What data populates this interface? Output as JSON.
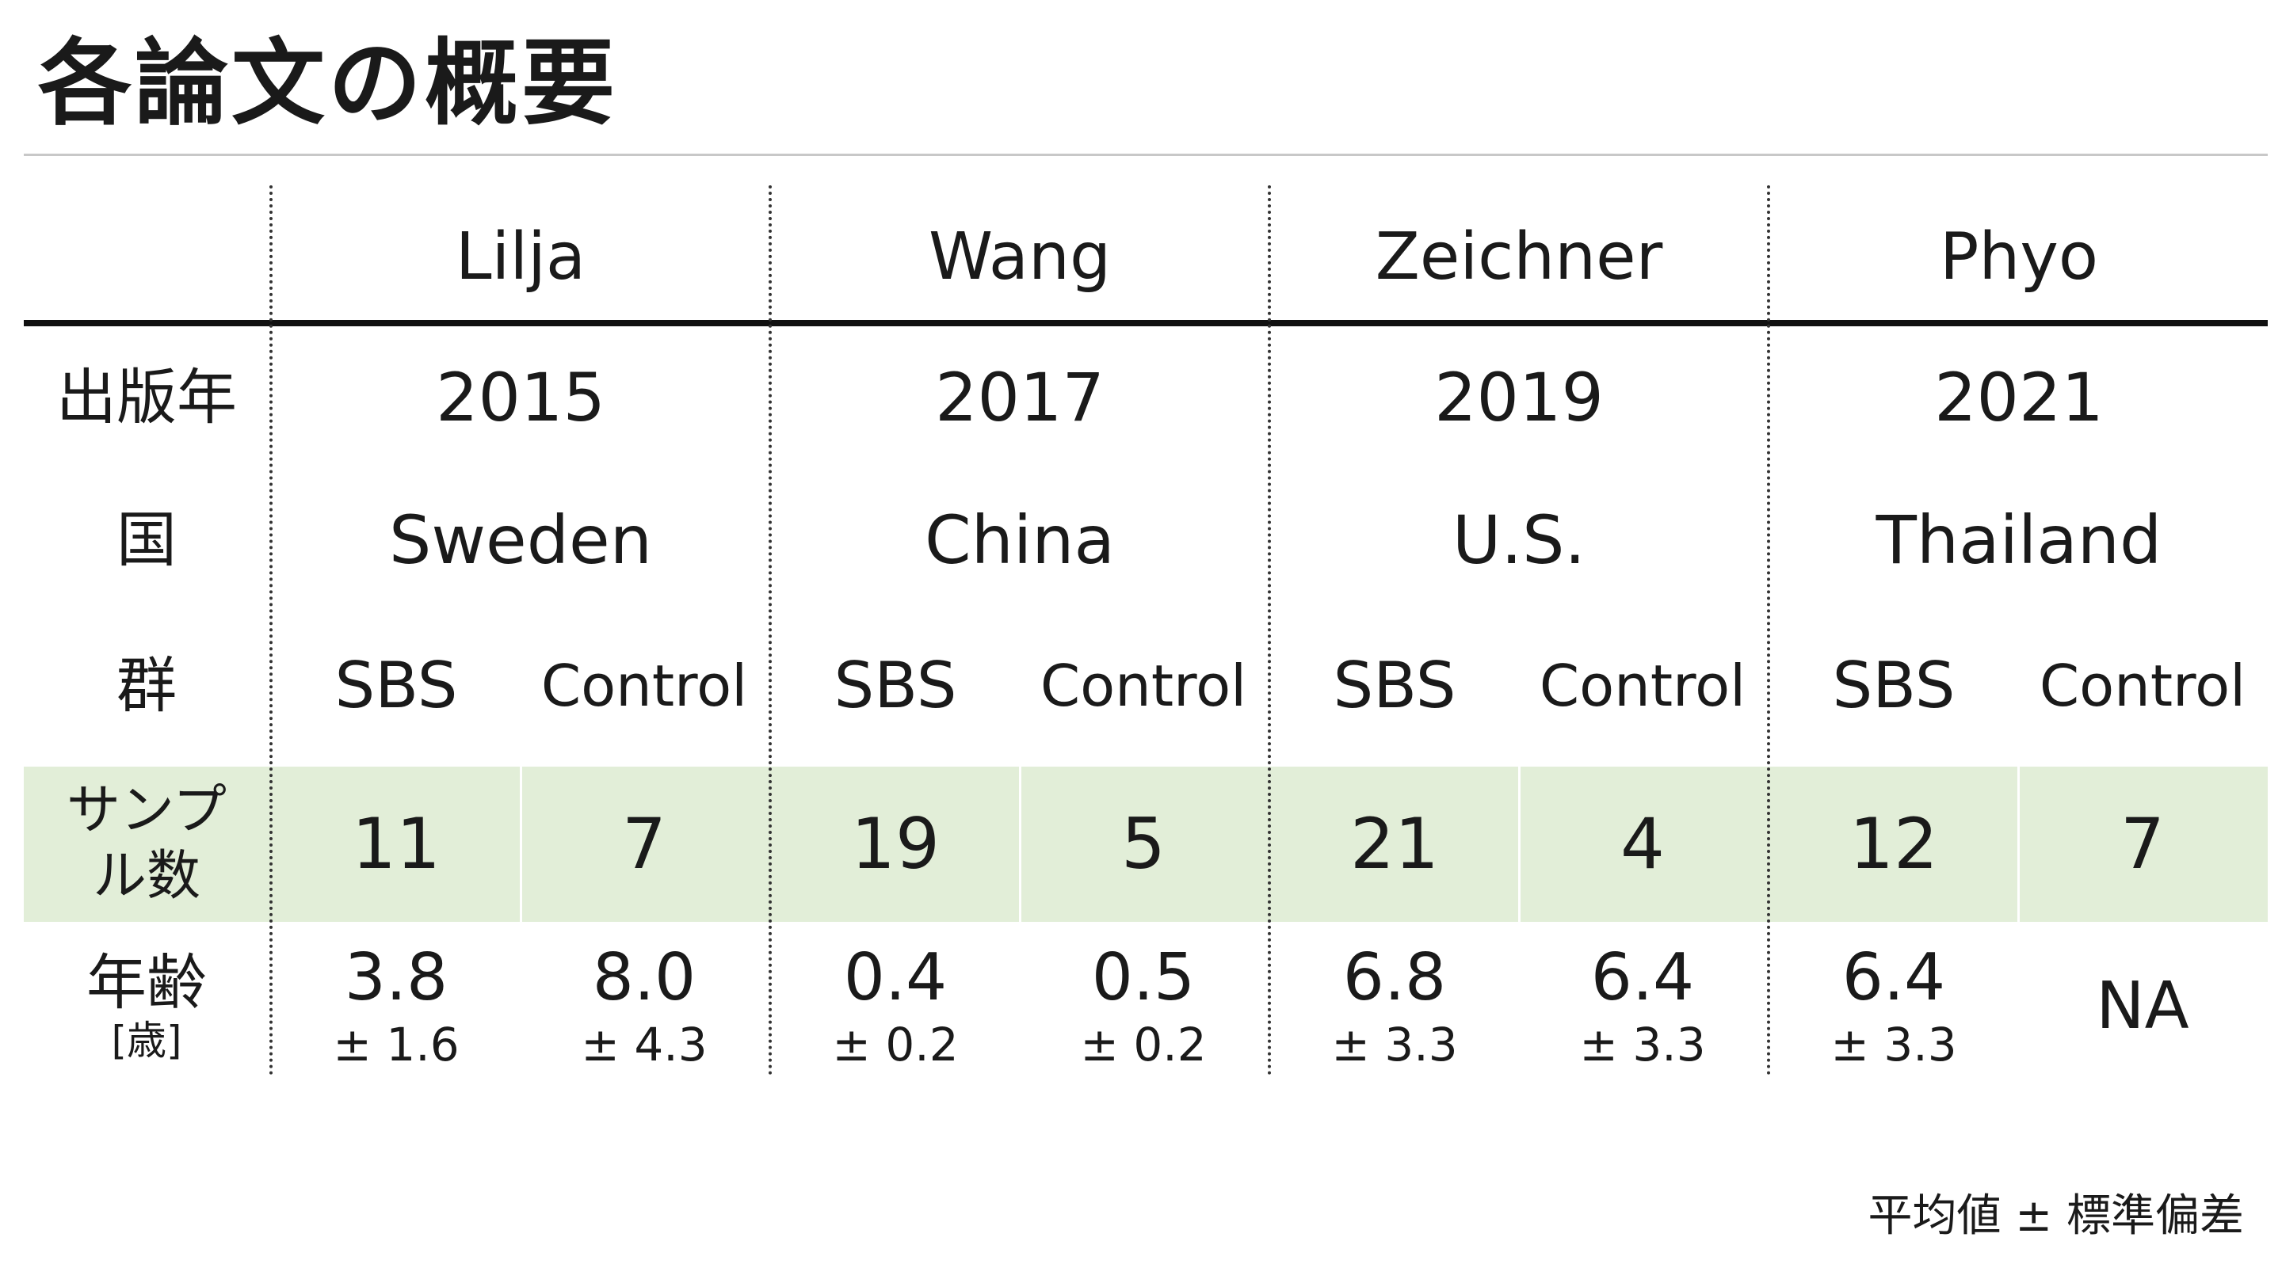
{
  "title": "各論文の概要",
  "colors": {
    "sample_band": "#e2eed8",
    "header_rule": "#111111",
    "title_rule": "#c8c8c8",
    "text": "#1a1a1a"
  },
  "row_labels": {
    "year": "出版年",
    "country": "国",
    "group": "群",
    "sample_line1": "サンプ",
    "sample_line2": "ル数",
    "age": "年齢",
    "age_unit": "[歳]"
  },
  "studies": [
    {
      "author": "Lilja",
      "year": "2015",
      "country": "Sweden",
      "groups": [
        {
          "name": "SBS",
          "n": "11",
          "age_mean": "3.8",
          "age_sd": "± 1.6"
        },
        {
          "name": "Control",
          "n": "7",
          "age_mean": "8.0",
          "age_sd": "± 4.3"
        }
      ]
    },
    {
      "author": "Wang",
      "year": "2017",
      "country": "China",
      "groups": [
        {
          "name": "SBS",
          "n": "19",
          "age_mean": "0.4",
          "age_sd": "± 0.2"
        },
        {
          "name": "Control",
          "n": "5",
          "age_mean": "0.5",
          "age_sd": "± 0.2"
        }
      ]
    },
    {
      "author": "Zeichner",
      "year": "2019",
      "country": "U.S.",
      "groups": [
        {
          "name": "SBS",
          "n": "21",
          "age_mean": "6.8",
          "age_sd": "± 3.3"
        },
        {
          "name": "Control",
          "n": "4",
          "age_mean": "6.4",
          "age_sd": "± 3.3"
        }
      ]
    },
    {
      "author": "Phyo",
      "year": "2021",
      "country": "Thailand",
      "groups": [
        {
          "name": "SBS",
          "n": "12",
          "age_mean": "6.4",
          "age_sd": "± 3.3"
        },
        {
          "name": "Control",
          "n": "7",
          "age_mean": "NA",
          "age_sd": ""
        }
      ]
    }
  ],
  "footnote": "平均値 ± 標準偏差"
}
